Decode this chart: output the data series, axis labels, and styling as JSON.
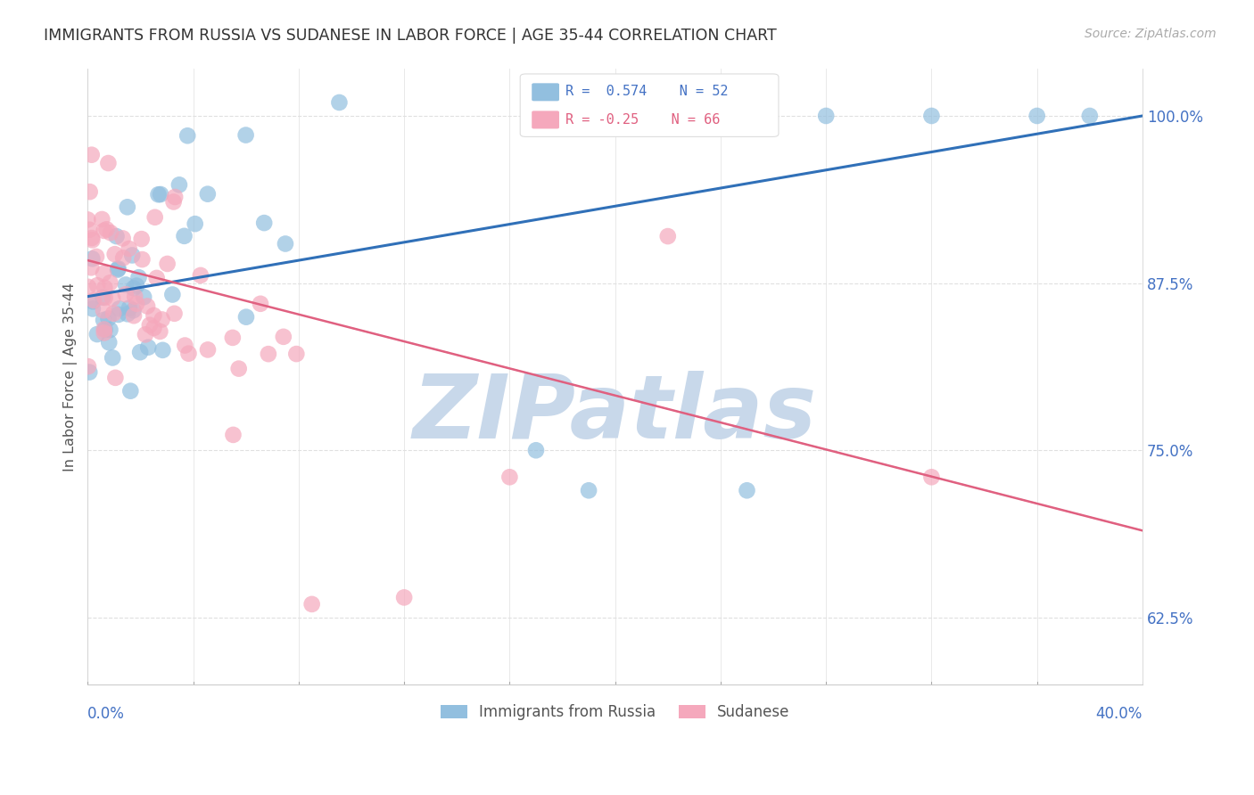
{
  "title": "IMMIGRANTS FROM RUSSIA VS SUDANESE IN LABOR FORCE | AGE 35-44 CORRELATION CHART",
  "source": "Source: ZipAtlas.com",
  "ylabel": "In Labor Force | Age 35-44",
  "yticks": [
    0.625,
    0.75,
    0.875,
    1.0
  ],
  "ytick_labels": [
    "62.5%",
    "75.0%",
    "87.5%",
    "100.0%"
  ],
  "xlim": [
    0.0,
    0.4
  ],
  "ylim": [
    0.575,
    1.035
  ],
  "russia_R": 0.574,
  "russia_N": 52,
  "sudanese_R": -0.25,
  "sudanese_N": 66,
  "russia_color": "#92bfdf",
  "sudanese_color": "#f5a8bc",
  "russia_line_color": "#3070b8",
  "sudanese_line_color": "#e06080",
  "watermark": "ZIPatlas",
  "watermark_color": "#c8d8ea",
  "grid_color": "#e0e0e0",
  "title_color": "#333333",
  "source_color": "#aaaaaa",
  "tick_color": "#4472c4",
  "ylabel_color": "#555555"
}
